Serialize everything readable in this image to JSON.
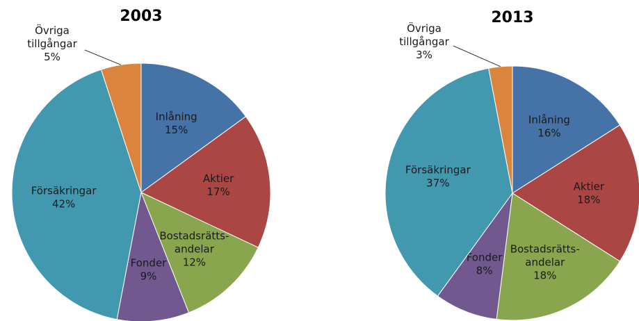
{
  "chart_data": [
    {
      "type": "pie",
      "title": "2003",
      "categories": [
        "Inlåning",
        "Aktier",
        "Bostadsrätts-andelar",
        "Fonder",
        "Försäkringar",
        "Övriga tillgångar"
      ],
      "values": [
        15,
        17,
        12,
        9,
        42,
        5
      ],
      "value_labels": [
        "15%",
        "17%",
        "12%",
        "9%",
        "42%",
        "5%"
      ],
      "colors": [
        "#4572a7",
        "#aa4643",
        "#89a54e",
        "#71588f",
        "#4198af",
        "#db843d"
      ]
    },
    {
      "type": "pie",
      "title": "2013",
      "categories": [
        "Inlåning",
        "Aktier",
        "Bostadsrätts-andelar",
        "Fonder",
        "Försäkringar",
        "Övriga tillgångar"
      ],
      "values": [
        16,
        18,
        18,
        8,
        37,
        3
      ],
      "value_labels": [
        "16%",
        "18%",
        "18%",
        "8%",
        "37%",
        "3%"
      ],
      "colors": [
        "#4572a7",
        "#aa4643",
        "#89a54e",
        "#71588f",
        "#4198af",
        "#db843d"
      ]
    }
  ]
}
